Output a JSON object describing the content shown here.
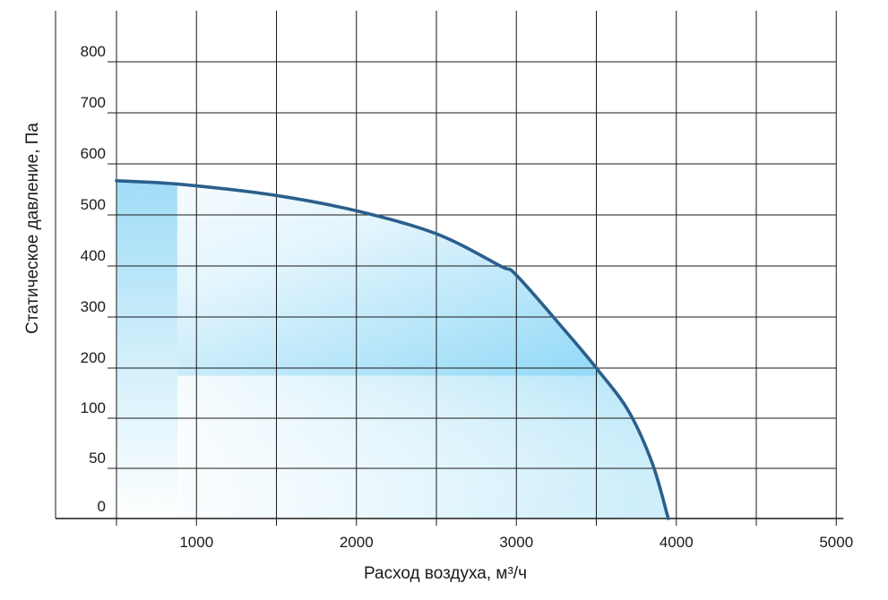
{
  "chart_data": {
    "type": "area",
    "title": "",
    "xlabel": "Расход воздуха, м³/ч",
    "ylabel": "Статическое давление, Па",
    "x_ticks": [
      {
        "value": 1000,
        "label": "1000"
      },
      {
        "value": 2000,
        "label": "2000"
      },
      {
        "value": 3000,
        "label": "3000"
      },
      {
        "value": 4000,
        "label": "4000"
      },
      {
        "value": 5000,
        "label": "5000"
      }
    ],
    "y_ticks": [
      {
        "value": 0,
        "label": "0"
      },
      {
        "value": 50,
        "label": "50"
      },
      {
        "value": 100,
        "label": "100"
      },
      {
        "value": 200,
        "label": "200"
      },
      {
        "value": 300,
        "label": "300"
      },
      {
        "value": 400,
        "label": "400"
      },
      {
        "value": 500,
        "label": "500"
      },
      {
        "value": 600,
        "label": "600"
      },
      {
        "value": 700,
        "label": "700"
      },
      {
        "value": 800,
        "label": "800"
      }
    ],
    "xlim": [
      500,
      5000
    ],
    "ylim": [
      0,
      900
    ],
    "grid": true,
    "series": [
      {
        "curve": [
          {
            "x": 500,
            "y": 567
          },
          {
            "x": 900,
            "y": 560
          },
          {
            "x": 1500,
            "y": 538
          },
          {
            "x": 2000,
            "y": 508
          },
          {
            "x": 2500,
            "y": 463
          },
          {
            "x": 2900,
            "y": 400
          },
          {
            "x": 3000,
            "y": 382
          },
          {
            "x": 3300,
            "y": 275
          },
          {
            "x": 3500,
            "y": 200
          },
          {
            "x": 3700,
            "y": 115
          },
          {
            "x": 3850,
            "y": 55
          },
          {
            "x": 3950,
            "y": 0
          }
        ]
      }
    ],
    "working_zone": {
      "x_min": 880,
      "y_max": 185
    },
    "colors": {
      "curve": "#2b5f8c",
      "fill_strong": "#7ed3f5",
      "fill_light": "#ffffff",
      "grid": "#1a1a1a"
    }
  }
}
